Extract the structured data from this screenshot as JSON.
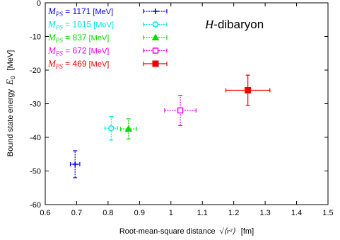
{
  "chart_data": {
    "type": "scatter",
    "title": "",
    "annotation": {
      "italic": "H",
      "rest": "-dibaryon"
    },
    "xlabel": {
      "pre": "Root-mean-square distance",
      "math": "√⟨r²⟩",
      "unit": "[fm]"
    },
    "ylabel": {
      "pre": "Bound state energy",
      "math": "E",
      "sub": "0",
      "unit": "[MeV]"
    },
    "xlim": [
      0.6,
      1.5
    ],
    "ylim": [
      -60,
      0
    ],
    "xticks": [
      0.6,
      0.7,
      0.8,
      0.9,
      1.0,
      1.1,
      1.2,
      1.3,
      1.4,
      1.5
    ],
    "xtick_labels": [
      "0.6",
      "0.7",
      "0.8",
      "0.9",
      "1",
      "1.1",
      "1.2",
      "1.3",
      "1.4",
      "1.5"
    ],
    "yticks": [
      0,
      -10,
      -20,
      -30,
      -40,
      -50,
      -60
    ],
    "ytick_labels": [
      "0",
      "-10",
      "-20",
      "-30",
      "-40",
      "-50",
      "-60"
    ],
    "grid": false,
    "legend_position": "top-left",
    "series": [
      {
        "name": "M_PS = 1171 [MeV]",
        "mass_label": "1171",
        "color": "#0000ee",
        "marker": "plus",
        "x": 0.695,
        "xerr": 0.015,
        "y": -48.0,
        "yerr": 4.0
      },
      {
        "name": "M_PS = 1015 [MeV]",
        "mass_label": "1015",
        "color": "#00e5e5",
        "marker": "circle",
        "x": 0.81,
        "xerr": 0.02,
        "y": -37.3,
        "yerr": 3.5
      },
      {
        "name": "M_PS = 837 [MeV]",
        "mass_label": "837",
        "color": "#00dd00",
        "marker": "triangle",
        "x": 0.865,
        "xerr": 0.025,
        "y": -37.5,
        "yerr": 3.0
      },
      {
        "name": "M_PS = 672 [MeV]",
        "mass_label": "672",
        "color": "#ee00ee",
        "marker": "square-open",
        "x": 1.03,
        "xerr": 0.05,
        "y": -32.0,
        "yerr": 4.5
      },
      {
        "name": "M_PS = 469 [MeV]",
        "mass_label": "469",
        "color": "#ee0000",
        "marker": "square-filled",
        "x": 1.245,
        "xerr": 0.07,
        "y": -26.0,
        "yerr": 4.5
      }
    ]
  }
}
